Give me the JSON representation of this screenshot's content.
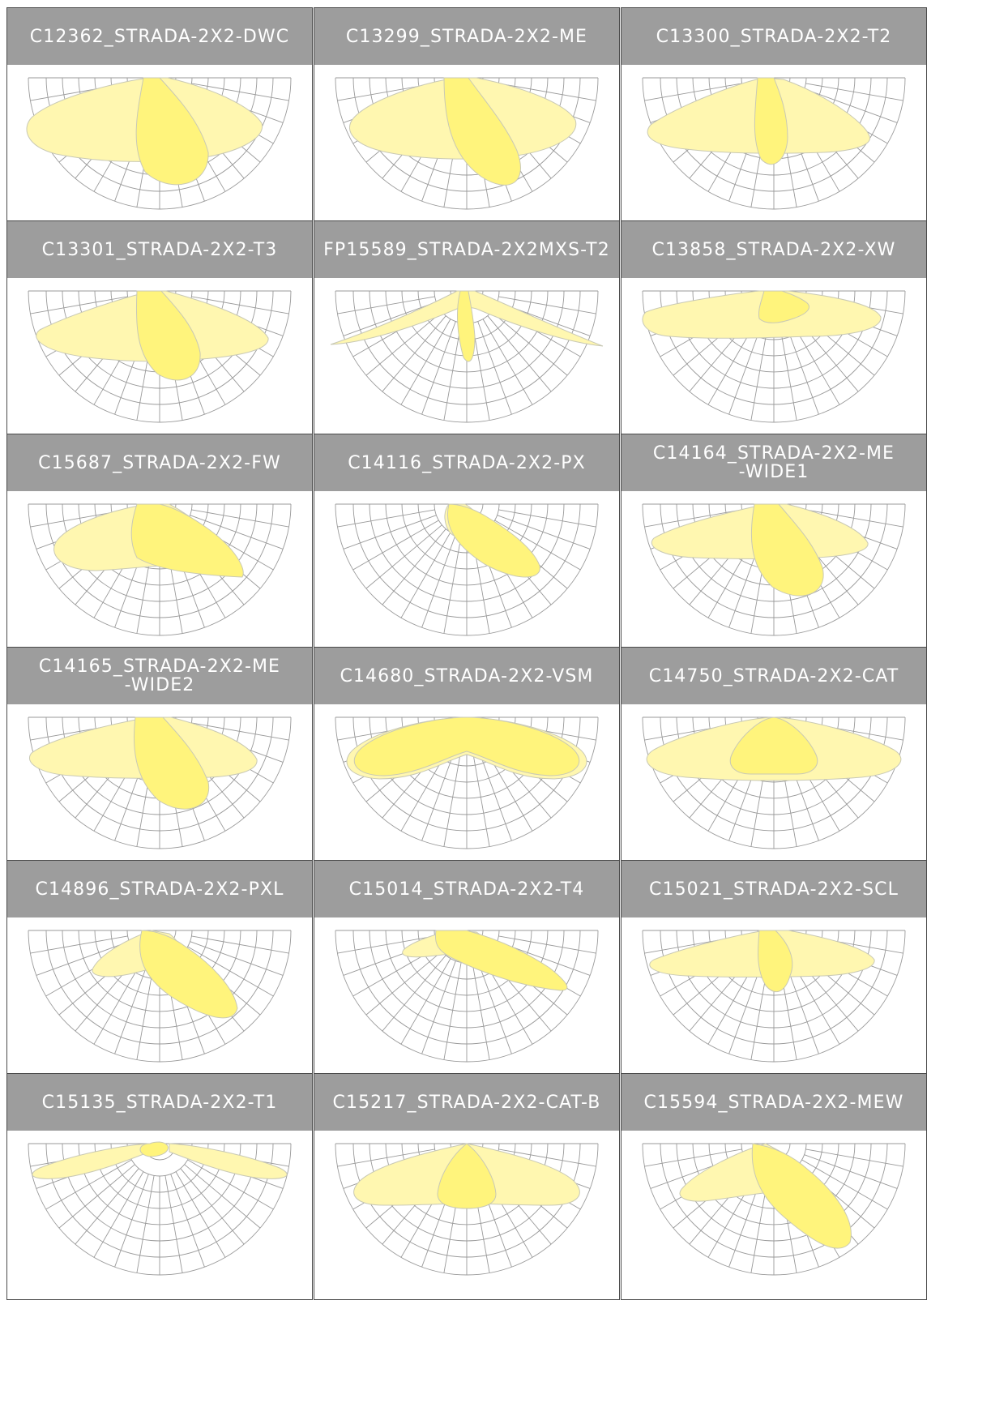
{
  "colors": {
    "header_bg": "#9d9d9d",
    "header_text": "#ffffff",
    "card_border": "#4a4a4a",
    "grid": "#9a9a9a",
    "beam_light": "#fff7b0",
    "beam_main": "#fff47c",
    "beam_stroke": "#c9c9b5"
  },
  "cards": [
    {
      "title": "C12362_STRADA-2X2-DWC",
      "beam": "dwc"
    },
    {
      "title": "C13299_STRADA-2X2-ME",
      "beam": "me"
    },
    {
      "title": "C13300_STRADA-2X2-T2",
      "beam": "t2"
    },
    {
      "title": "C13301_STRADA-2X2-T3",
      "beam": "t3"
    },
    {
      "title": "FP15589_STRADA-2X2MXS-T2",
      "beam": "mxs"
    },
    {
      "title": "C13858_STRADA-2X2-XW",
      "beam": "xw"
    },
    {
      "title": "C15687_STRADA-2X2-FW",
      "beam": "fw"
    },
    {
      "title": "C14116_STRADA-2X2-PX",
      "beam": "px"
    },
    {
      "title": "C14164_STRADA-2X2-ME\n-WIDE1",
      "beam": "wide1"
    },
    {
      "title": "C14165_STRADA-2X2-ME\n-WIDE2",
      "beam": "wide2"
    },
    {
      "title": "C14680_STRADA-2X2-VSM",
      "beam": "vsm"
    },
    {
      "title": "C14750_STRADA-2X2-CAT",
      "beam": "cat"
    },
    {
      "title": "C14896_STRADA-2X2-PXL",
      "beam": "pxl"
    },
    {
      "title": "C15014_STRADA-2X2-T4",
      "beam": "t4"
    },
    {
      "title": "C15021_STRADA-2X2-SCL",
      "beam": "scl"
    },
    {
      "title": "C15135_STRADA-2X2-T1",
      "beam": "t1"
    },
    {
      "title": "C15217_STRADA-2X2-CAT-B",
      "beam": "catb"
    },
    {
      "title": "C15594_STRADA-2X2-MEW",
      "beam": "mew"
    }
  ]
}
